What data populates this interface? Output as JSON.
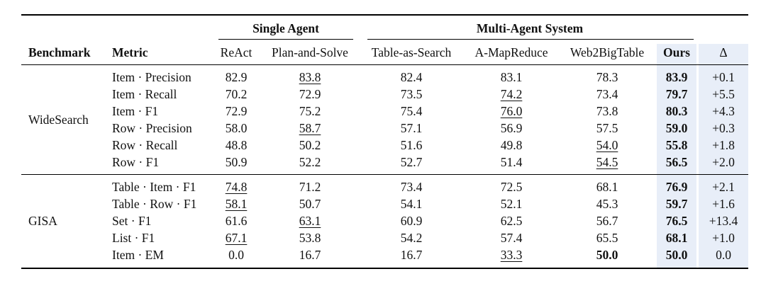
{
  "table": {
    "group_headers": {
      "single": "Single Agent",
      "multi": "Multi-Agent System"
    },
    "columns": [
      "Benchmark",
      "Metric",
      "ReAct",
      "Plan-and-Solve",
      "Table-as-Search",
      "A-MapReduce",
      "Web2BigTable",
      "Ours",
      "Δ"
    ],
    "sections": [
      {
        "benchmark": "WideSearch",
        "rows": [
          {
            "metric": "Item · Precision",
            "values": [
              "82.9",
              "83.8",
              "82.4",
              "83.1",
              "78.3",
              "83.9"
            ],
            "delta": "+0.1",
            "underline": 1,
            "bold": [
              5
            ]
          },
          {
            "metric": "Item · Recall",
            "values": [
              "70.2",
              "72.9",
              "73.5",
              "74.2",
              "73.4",
              "79.7"
            ],
            "delta": "+5.5",
            "underline": 3,
            "bold": [
              5
            ]
          },
          {
            "metric": "Item · F1",
            "values": [
              "72.9",
              "75.2",
              "75.4",
              "76.0",
              "73.8",
              "80.3"
            ],
            "delta": "+4.3",
            "underline": 3,
            "bold": [
              5
            ]
          },
          {
            "metric": "Row · Precision",
            "values": [
              "58.0",
              "58.7",
              "57.1",
              "56.9",
              "57.5",
              "59.0"
            ],
            "delta": "+0.3",
            "underline": 1,
            "bold": [
              5
            ]
          },
          {
            "metric": "Row · Recall",
            "values": [
              "48.8",
              "50.2",
              "51.6",
              "49.8",
              "54.0",
              "55.8"
            ],
            "delta": "+1.8",
            "underline": 4,
            "bold": [
              5
            ]
          },
          {
            "metric": "Row · F1",
            "values": [
              "50.9",
              "52.2",
              "52.7",
              "51.4",
              "54.5",
              "56.5"
            ],
            "delta": "+2.0",
            "underline": 4,
            "bold": [
              5
            ]
          }
        ]
      },
      {
        "benchmark": "GISA",
        "rows": [
          {
            "metric": "Table · Item · F1",
            "values": [
              "74.8",
              "71.2",
              "73.4",
              "72.5",
              "68.1",
              "76.9"
            ],
            "delta": "+2.1",
            "underline": 0,
            "bold": [
              5
            ]
          },
          {
            "metric": "Table · Row · F1",
            "values": [
              "58.1",
              "50.7",
              "54.1",
              "52.1",
              "45.3",
              "59.7"
            ],
            "delta": "+1.6",
            "underline": 0,
            "bold": [
              5
            ]
          },
          {
            "metric": "Set · F1",
            "values": [
              "61.6",
              "63.1",
              "60.9",
              "62.5",
              "56.7",
              "76.5"
            ],
            "delta": "+13.4",
            "underline": 1,
            "bold": [
              5
            ]
          },
          {
            "metric": "List · F1",
            "values": [
              "67.1",
              "53.8",
              "54.2",
              "57.4",
              "65.5",
              "68.1"
            ],
            "delta": "+1.0",
            "underline": 0,
            "bold": [
              5
            ]
          },
          {
            "metric": "Item · EM",
            "values": [
              "0.0",
              "16.7",
              "16.7",
              "33.3",
              "50.0",
              "50.0"
            ],
            "delta": "0.0",
            "underline": 3,
            "bold": [
              4,
              5
            ]
          }
        ]
      }
    ]
  },
  "style": {
    "ours_shade": "#e8eef8"
  }
}
